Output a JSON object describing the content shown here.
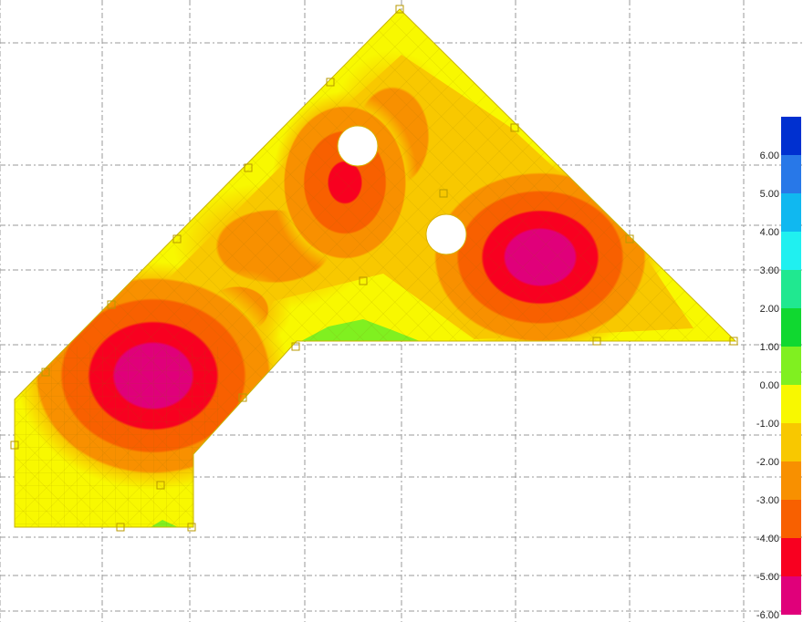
{
  "legend": {
    "labels": [
      "6.00",
      "5.00",
      "4.00",
      "3.00",
      "2.00",
      "1.00",
      "0.00",
      "-1.00",
      "-2.00",
      "-3.00",
      "-4.00",
      "-5.00",
      "-6.00"
    ],
    "colors": [
      "#0030d0",
      "#2878e8",
      "#10b8f0",
      "#20f0f0",
      "#20e890",
      "#10d830",
      "#80f020",
      "#f8f800",
      "#f8c800",
      "#f89000",
      "#f86000",
      "#f80020",
      "#e0007a"
    ]
  }
}
